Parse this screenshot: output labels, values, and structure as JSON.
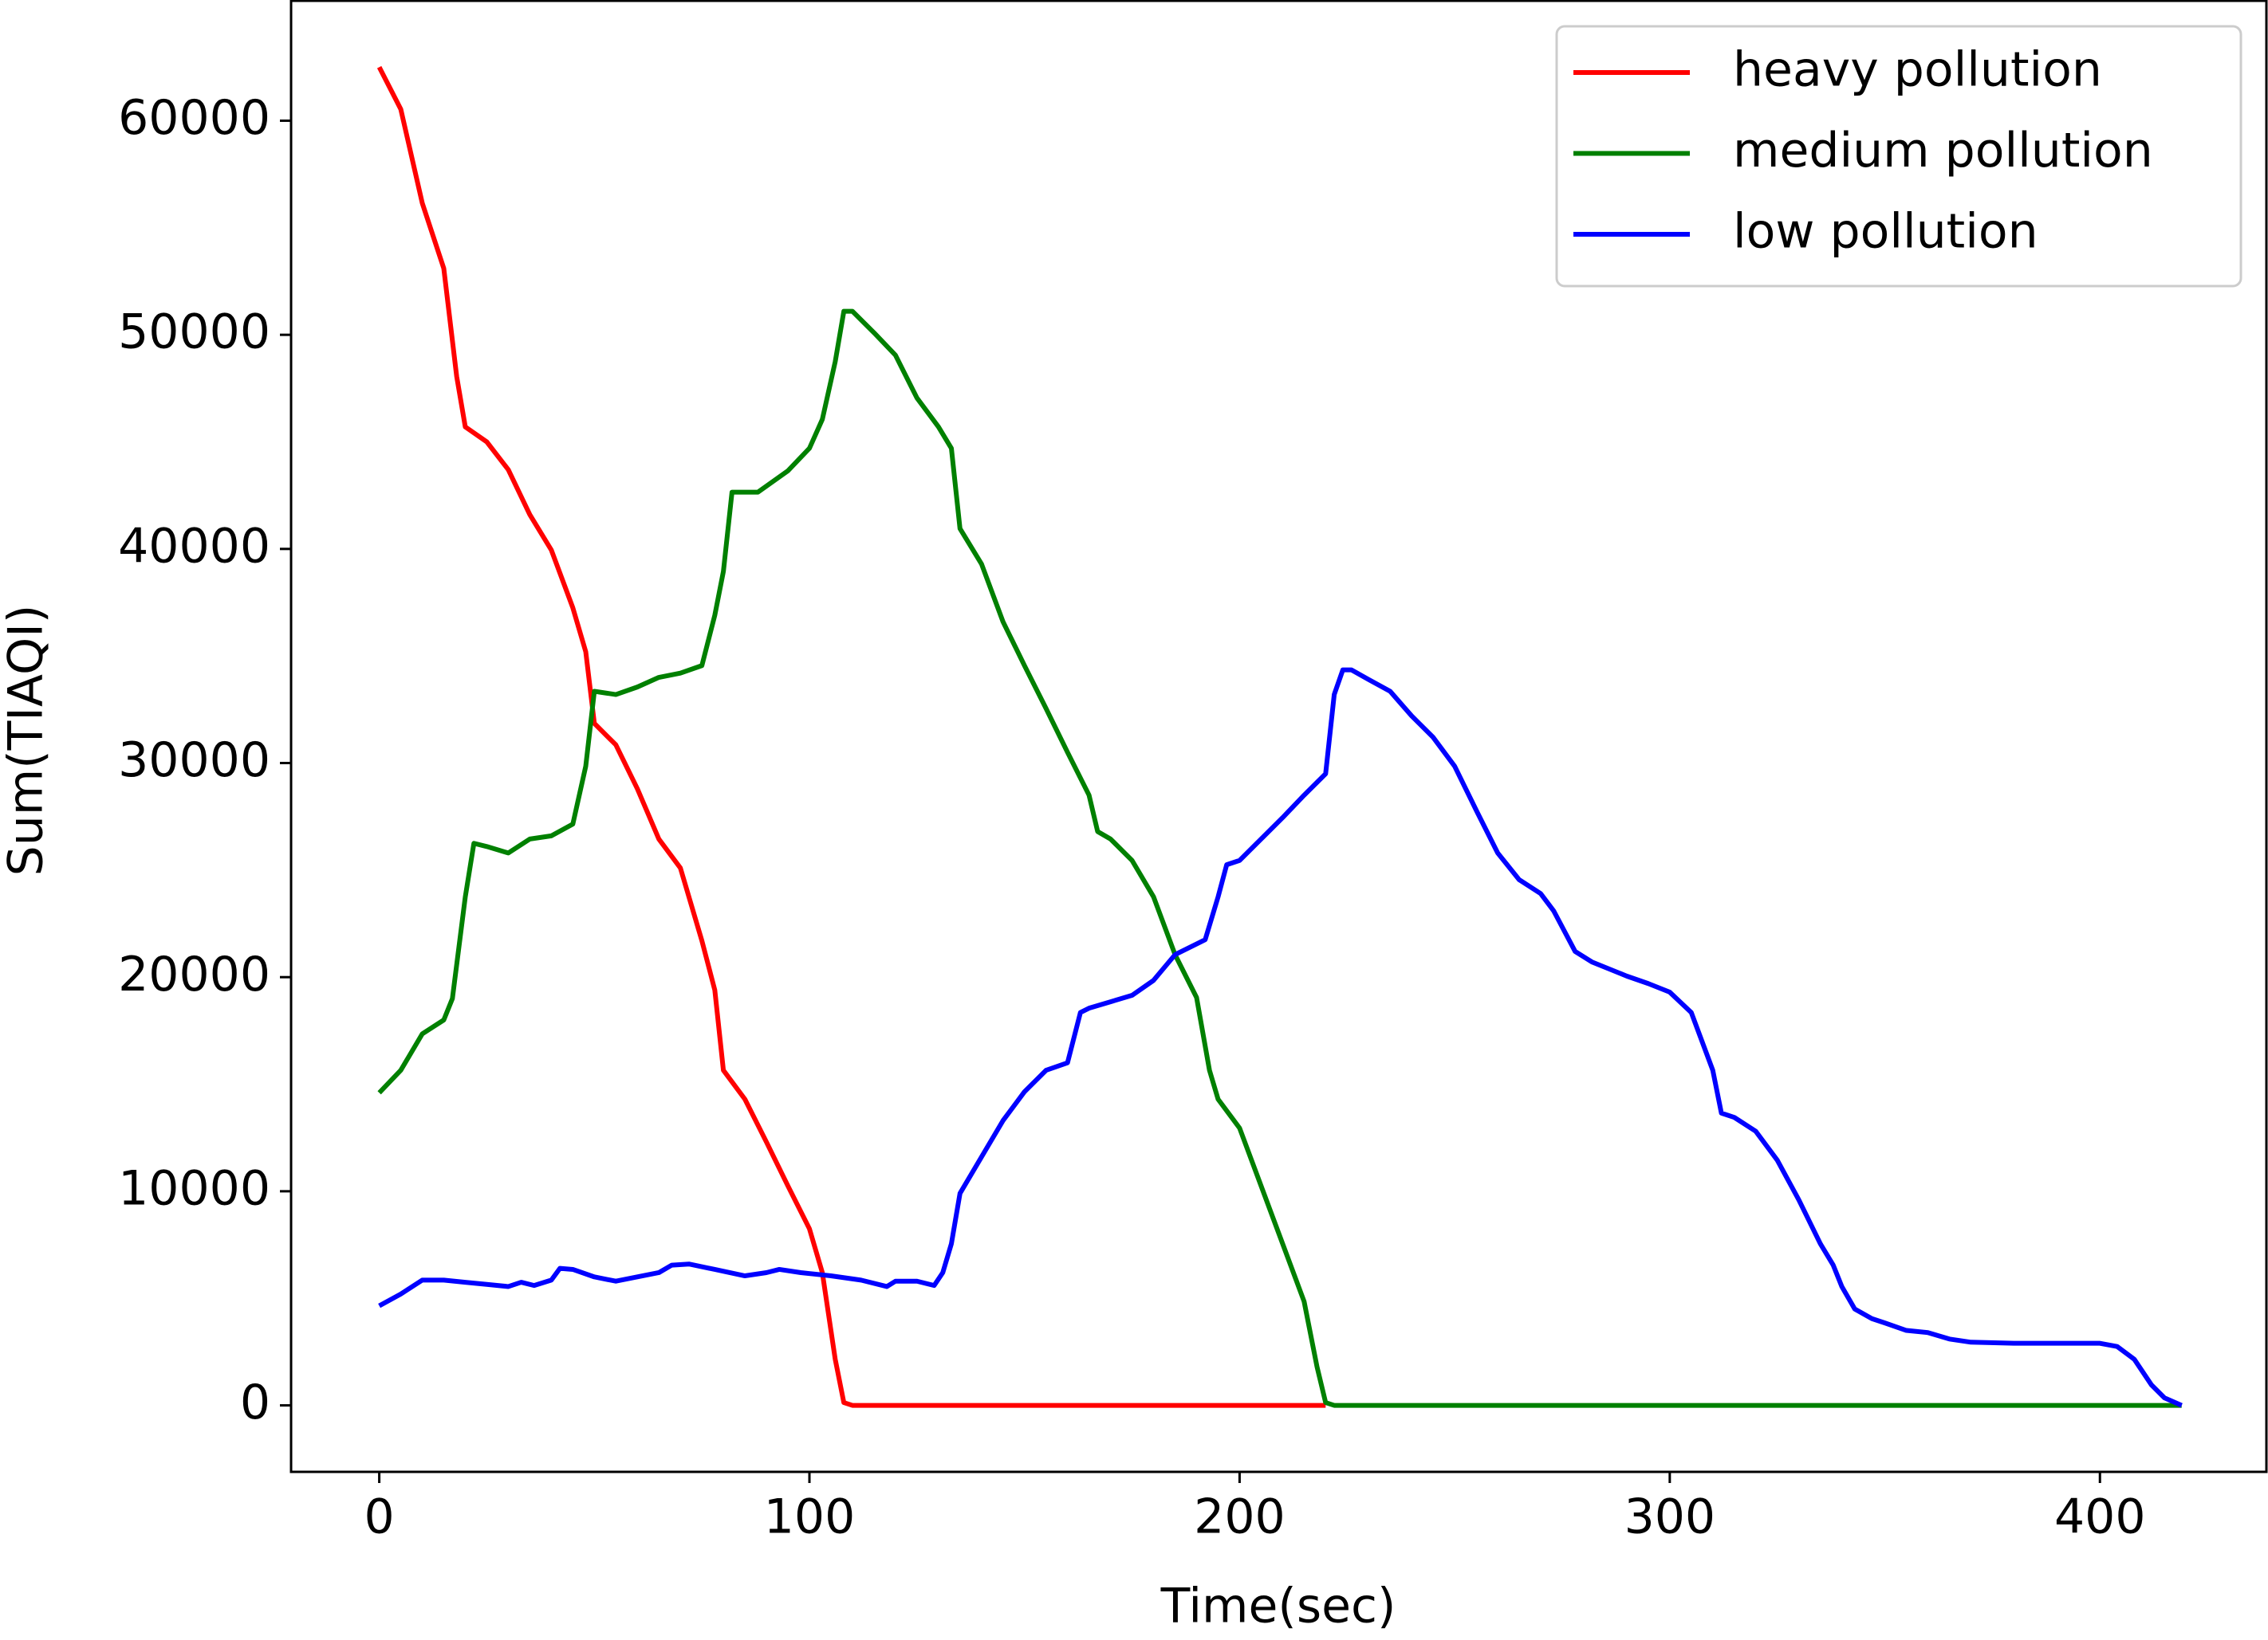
{
  "chart_data": {
    "type": "line",
    "x_label": "Time(sec)",
    "y_label": "Sum(TIAQI)",
    "xlim": [
      -20.5,
      438.7
    ],
    "ylim": [
      -3105,
      65600
    ],
    "xticks": [
      0,
      100,
      200,
      300,
      400
    ],
    "yticks": [
      0,
      10000,
      20000,
      30000,
      40000,
      50000,
      60000
    ],
    "legend": "upper right",
    "series": [
      {
        "name": "heavy pollution",
        "color": "#ff0000",
        "x": [
          0,
          5,
          10,
          15,
          18,
          20,
          25,
          30,
          35,
          40,
          45,
          48,
          50,
          55,
          60,
          65,
          70,
          75,
          78,
          80,
          85,
          90,
          95,
          100,
          103,
          106,
          108,
          110,
          220
        ],
        "values": [
          62500,
          60540,
          56150,
          53100,
          48050,
          45700,
          45000,
          43700,
          41600,
          39950,
          37250,
          35200,
          31850,
          30850,
          28800,
          26450,
          25100,
          21700,
          19400,
          15650,
          14300,
          12300,
          10250,
          8250,
          6200,
          2150,
          130,
          0,
          0
        ]
      },
      {
        "name": "medium pollution",
        "color": "#008000",
        "x": [
          0,
          5,
          10,
          15,
          17,
          20,
          22,
          25,
          30,
          35,
          40,
          45,
          48,
          50,
          55,
          60,
          65,
          70,
          75,
          78,
          80,
          82,
          88,
          95,
          100,
          103,
          106,
          108,
          110,
          115,
          120,
          125,
          130,
          133,
          135,
          140,
          145,
          150,
          155,
          160,
          165,
          167,
          170,
          175,
          180,
          185,
          190,
          193,
          195,
          200,
          205,
          210,
          215,
          218,
          220,
          222,
          419
        ],
        "values": [
          14600,
          15650,
          17350,
          18000,
          19000,
          23750,
          26250,
          26100,
          25800,
          26450,
          26600,
          27150,
          29850,
          33350,
          33200,
          33550,
          34000,
          34200,
          34550,
          36900,
          38950,
          42650,
          42650,
          43650,
          44700,
          46050,
          48750,
          51100,
          51100,
          50100,
          49050,
          47050,
          45700,
          44700,
          40950,
          39300,
          36600,
          34550,
          32550,
          30500,
          28500,
          26800,
          26450,
          25450,
          23750,
          21050,
          19050,
          15650,
          14300,
          12950,
          10250,
          7550,
          4850,
          1800,
          130,
          0,
          0
        ]
      },
      {
        "name": "low pollution",
        "color": "#0000ff",
        "x": [
          0,
          5,
          10,
          15,
          20,
          25,
          30,
          33,
          36,
          40,
          42,
          45,
          50,
          55,
          60,
          65,
          68,
          72,
          78,
          85,
          90,
          93,
          98,
          105,
          112,
          118,
          120,
          125,
          129,
          131,
          133,
          135,
          140,
          145,
          150,
          155,
          160,
          163,
          165,
          170,
          175,
          180,
          185,
          190,
          192,
          195,
          197,
          200,
          205,
          210,
          215,
          220,
          222,
          224,
          226,
          230,
          235,
          240,
          245,
          250,
          255,
          260,
          265,
          270,
          273,
          278,
          282,
          290,
          295,
          300,
          305,
          310,
          312,
          315,
          320,
          325,
          330,
          335,
          338,
          340,
          343,
          347,
          350,
          355,
          360,
          365,
          370,
          380,
          400,
          404,
          408,
          412,
          415,
          419
        ],
        "values": [
          4650,
          5200,
          5850,
          5850,
          5750,
          5650,
          5550,
          5750,
          5600,
          5850,
          6400,
          6350,
          6000,
          5800,
          6000,
          6200,
          6550,
          6600,
          6350,
          6050,
          6200,
          6350,
          6200,
          6050,
          5850,
          5550,
          5800,
          5800,
          5600,
          6200,
          7550,
          9900,
          11600,
          13300,
          14650,
          15650,
          16000,
          18350,
          18550,
          18850,
          19150,
          19850,
          21050,
          21550,
          21750,
          23750,
          25250,
          25450,
          26450,
          27450,
          28500,
          29500,
          33200,
          34350,
          34350,
          33900,
          33350,
          32200,
          31200,
          29850,
          27800,
          25800,
          24550,
          23900,
          23100,
          21200,
          20700,
          20050,
          19700,
          19300,
          18350,
          15650,
          13650,
          13450,
          12800,
          11450,
          9600,
          7550,
          6550,
          5550,
          4500,
          4050,
          3850,
          3500,
          3400,
          3100,
          2950,
          2900,
          2900,
          2750,
          2150,
          950,
          350,
          0
        ]
      }
    ]
  }
}
